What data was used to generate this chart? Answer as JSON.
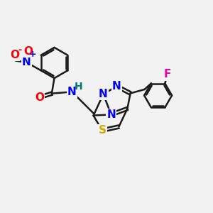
{
  "bg_color": "#f2f2f2",
  "bond_color": "#1a1a1a",
  "bond_width": 1.8,
  "atom_colors": {
    "O": "#ff0000",
    "N": "#0000ff",
    "S": "#ccaa00",
    "F": "#ee00aa",
    "H": "#007777",
    "C": "#1a1a1a"
  },
  "font_size_atom": 11,
  "font_size_small": 8
}
